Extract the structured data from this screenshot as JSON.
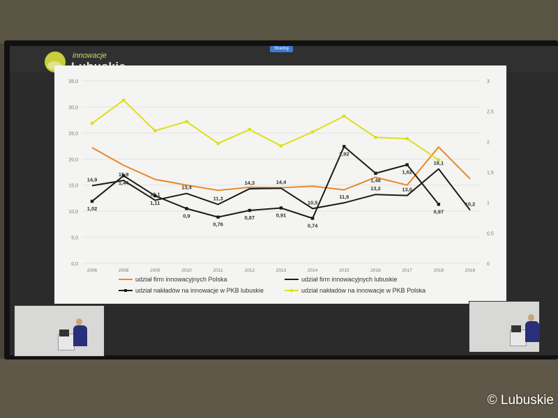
{
  "overlay": {
    "sharing_label": "Sharing",
    "copyright": "© Lubuskie"
  },
  "logo": {
    "line1": "innowacje",
    "line2": "Lubuskie"
  },
  "chart_data": {
    "type": "line",
    "categories": [
      "2006",
      "2008",
      "2009",
      "2010",
      "2011",
      "2012",
      "2013",
      "2014",
      "2015",
      "2016",
      "2017",
      "2018",
      "2019"
    ],
    "y_left": {
      "range": [
        0,
        35
      ],
      "ticks": [
        "0,0",
        "5,0",
        "10,0",
        "15,0",
        "20,0",
        "25,0",
        "30,0",
        "35,0"
      ]
    },
    "y_right": {
      "range": [
        0,
        3
      ],
      "ticks": [
        "0",
        "0,5",
        "1",
        "1,5",
        "2",
        "2,5",
        "3"
      ]
    },
    "grid": true,
    "legend_position": "bottom",
    "series": [
      {
        "name": "udział firm innowacyjnych Polska",
        "color": "#e8882a",
        "axis": "left",
        "values": [
          22.2,
          18.8,
          16.1,
          15.0,
          14.0,
          14.6,
          14.5,
          14.8,
          14.1,
          16.5,
          15.0,
          22.3,
          16.2
        ],
        "labels": []
      },
      {
        "name": "udział firm innowacyjnych lubuskie",
        "color": "#1a1a1a",
        "axis": "left",
        "values": [
          14.9,
          15.9,
          12.1,
          13.4,
          11.3,
          14.3,
          14.4,
          10.5,
          11.6,
          13.2,
          13.0,
          18.1,
          10.2
        ],
        "labels": [
          "14,9",
          "15,9",
          "12,1",
          "13,4",
          "11,3",
          "14,3",
          "14,4",
          "10,5",
          "11,6",
          "13,2",
          "13,0",
          "18,1",
          "10,2"
        ]
      },
      {
        "name": "udział nakładów na innowacje w PKB lubuskie",
        "color": "#1a1a1a",
        "axis": "right",
        "marker": "square",
        "values": [
          1.02,
          1.44,
          1.11,
          0.9,
          0.76,
          0.87,
          0.91,
          0.74,
          1.92,
          1.48,
          1.62,
          0.97,
          null
        ],
        "labels": [
          "1,02",
          "1,44",
          "1,11",
          "0,9",
          "0,76",
          "0,87",
          "0,91",
          "0,74",
          "1,92",
          "1,48",
          "1,62",
          "0,97",
          ""
        ]
      },
      {
        "name": "udział nakładów na innowacje w PKB Polska",
        "color": "#dede1a",
        "axis": "right",
        "marker": "circle",
        "values": [
          2.3,
          2.68,
          2.18,
          2.33,
          1.97,
          2.2,
          1.93,
          2.16,
          2.42,
          2.07,
          2.05,
          1.7,
          null
        ],
        "labels": []
      }
    ]
  }
}
